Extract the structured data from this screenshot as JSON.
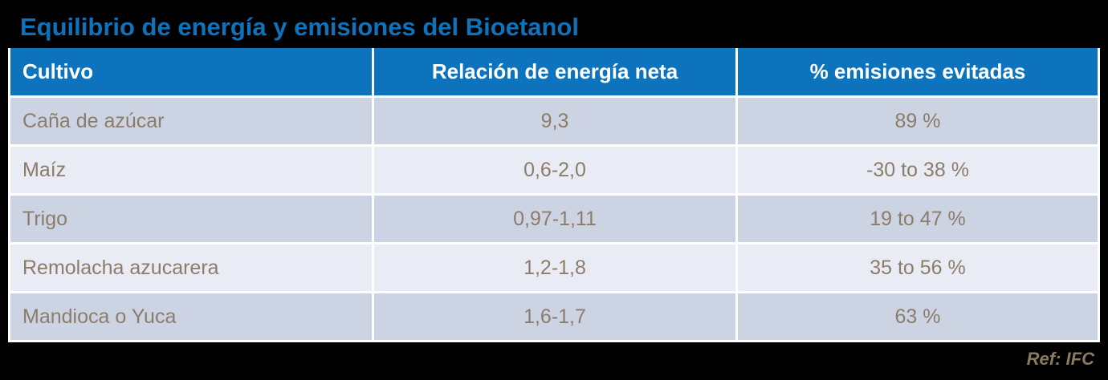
{
  "page": {
    "title": "Equilibrio de energía y emisiones del Bioetanol",
    "source_ref": "Ref: IFC",
    "background_color": "#000000"
  },
  "colors": {
    "title_text": "#0e73ba",
    "header_background": "#0d73bc",
    "header_text": "#ffffff",
    "row_dark_background": "#ccd4e4",
    "row_light_background": "#e9ecf4",
    "cell_text": "#8c7c6a",
    "ref_text": "#8a7a5f",
    "grid_lines": "#ffffff"
  },
  "chart_data": {
    "type": "table",
    "title": "Equilibrio de energía y emisiones del Bioetanol",
    "columns": [
      "Cultivo",
      "Relación de energía neta",
      "% emisiones evitadas"
    ],
    "rows": [
      {
        "cultivo": "Caña de azúcar",
        "relacion_energia_neta": "9,3",
        "emisiones_evitadas": "89 %"
      },
      {
        "cultivo": "Maíz",
        "relacion_energia_neta": "0,6-2,0",
        "emisiones_evitadas": "-30 to 38 %"
      },
      {
        "cultivo": "Trigo",
        "relacion_energia_neta": "0,97-1,11",
        "emisiones_evitadas": "19 to 47 %"
      },
      {
        "cultivo": "Remolacha azucarera",
        "relacion_energia_neta": "1,2-1,8",
        "emisiones_evitadas": "35 to 56 %"
      },
      {
        "cultivo": "Mandioca o Yuca",
        "relacion_energia_neta": "1,6-1,7",
        "emisiones_evitadas": "63 %"
      }
    ],
    "source": "Ref: IFC",
    "layout": {
      "grid": true,
      "alternating_rows": true,
      "first_column_align": "left",
      "value_columns_align": "center"
    }
  }
}
